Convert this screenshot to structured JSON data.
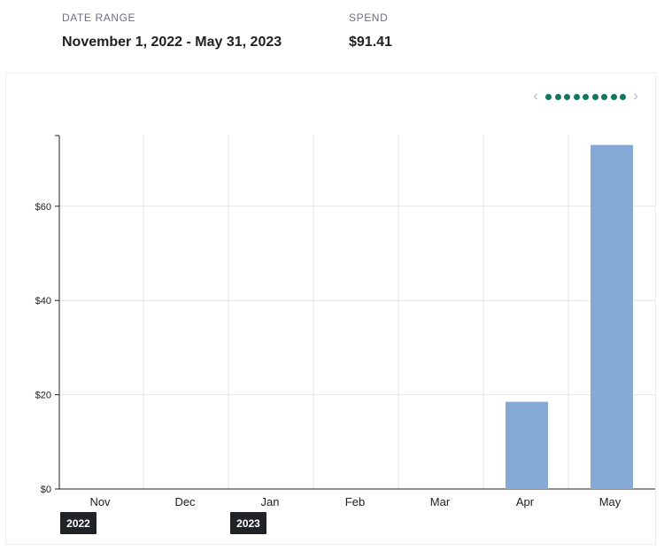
{
  "summary": {
    "date_range_label": "DATE RANGE",
    "date_range_value": "November 1, 2022 - May 31, 2023",
    "spend_label": "SPEND",
    "spend_value": "$91.41"
  },
  "pager": {
    "prev_icon": "chevron-left-icon",
    "next_icon": "chevron-right-icon",
    "dot_count": 9,
    "dot_color": "#10765f"
  },
  "chart_data": {
    "type": "bar",
    "categories": [
      "Nov",
      "Dec",
      "Jan",
      "Feb",
      "Mar",
      "Apr",
      "May"
    ],
    "values": [
      0,
      0,
      0,
      0,
      0,
      18.5,
      73
    ],
    "year_labels": [
      {
        "label": "2022",
        "category": "Nov"
      },
      {
        "label": "2023",
        "category": "Jan"
      }
    ],
    "y_ticks": [
      "$0",
      "$20",
      "$40",
      "$60"
    ],
    "y_tick_values": [
      0,
      20,
      40,
      60
    ],
    "ylim": [
      0,
      75
    ],
    "grid": true,
    "bar_color": "#84a9d4",
    "title": "",
    "xlabel": "",
    "ylabel": ""
  }
}
